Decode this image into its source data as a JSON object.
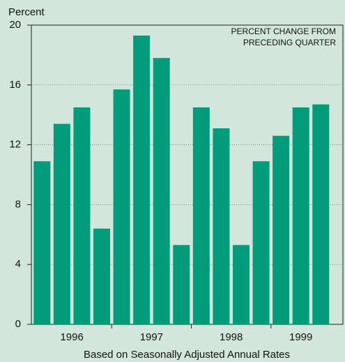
{
  "chart_data": {
    "type": "bar",
    "y_axis_label": "Percent",
    "annotation": [
      "PERCENT CHANGE FROM",
      "PRECEDING QUARTER"
    ],
    "x_axis_label": "Based on Seasonally Adjusted Annual Rates",
    "categories": [
      null,
      null,
      null,
      null,
      null,
      null,
      null,
      null,
      null,
      null,
      null,
      null,
      null,
      null,
      null
    ],
    "x_groups": [
      "1996",
      "1997",
      "1998",
      "1999"
    ],
    "values": [
      10.9,
      13.4,
      14.5,
      6.4,
      15.7,
      19.3,
      17.8,
      5.3,
      14.5,
      13.1,
      5.3,
      10.9,
      12.6,
      14.5,
      14.7
    ],
    "color": "#009c7c",
    "ylim": [
      0,
      20
    ],
    "yticks": [
      0,
      4,
      8,
      12,
      16,
      20
    ],
    "grid": true
  }
}
